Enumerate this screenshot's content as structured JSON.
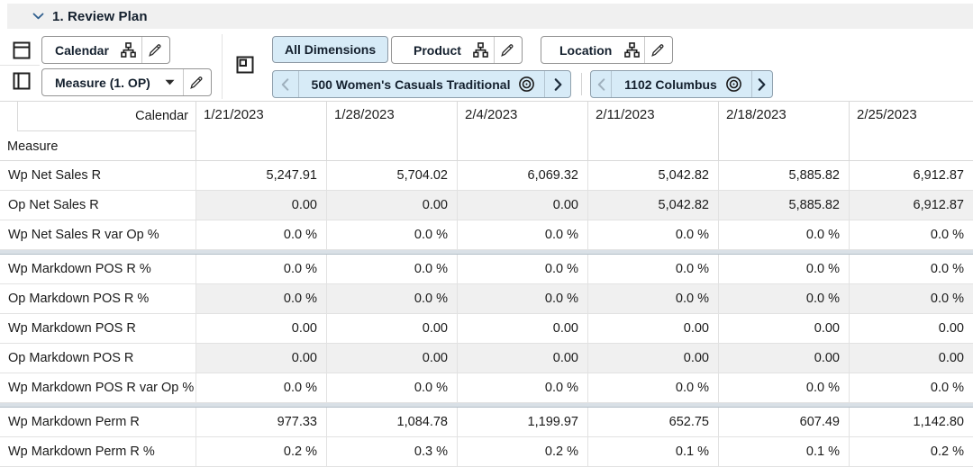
{
  "header": {
    "title": "1. Review Plan",
    "collapse_icon": "chevron-down"
  },
  "colors": {
    "title_bar_bg": "#f0f0f0",
    "selected_tile_bg": "#d7ebf7",
    "shaded_cell_bg": "#f0f0f0",
    "grid_line": "#d9d9d9",
    "group_separator": "#d9e0e6",
    "chevron_accent": "#31608f",
    "text": "#1a1a1a"
  },
  "icons": {
    "collapse": "chevron-down",
    "row_axis": "table-rows",
    "column_axis": "table-columns",
    "page_axis": "table-page",
    "hierarchy": "org-chart",
    "edit": "pencil",
    "dropdown": "caret-down",
    "prev": "chevron-left",
    "next": "chevron-right",
    "target": "bullseye"
  },
  "toolbar": {
    "row_axis": {
      "label": "Calendar"
    },
    "column_axis": {
      "label": "Measure (1. OP)"
    },
    "page_axis": {
      "all_dimensions_label": "All Dimensions",
      "product": {
        "label": "Product",
        "selected": "500 Women's Casuals Traditional"
      },
      "location": {
        "label": "Location",
        "selected": "1102 Columbus"
      }
    }
  },
  "table": {
    "corner": {
      "top_label": "Calendar",
      "bottom_label": "Measure"
    },
    "columns": [
      "1/21/2023",
      "1/28/2023",
      "2/4/2023",
      "2/11/2023",
      "2/18/2023",
      "2/25/2023"
    ],
    "groups": [
      {
        "rows": [
          {
            "label": "Wp Net Sales R",
            "shaded": false,
            "values": [
              "5,247.91",
              "5,704.02",
              "6,069.32",
              "5,042.82",
              "5,885.82",
              "6,912.87"
            ]
          },
          {
            "label": "Op Net Sales R",
            "shaded": true,
            "values": [
              "0.00",
              "0.00",
              "0.00",
              "5,042.82",
              "5,885.82",
              "6,912.87"
            ]
          },
          {
            "label": "Wp Net Sales R var Op %",
            "shaded": false,
            "values": [
              "0.0 %",
              "0.0 %",
              "0.0 %",
              "0.0 %",
              "0.0 %",
              "0.0 %"
            ]
          }
        ]
      },
      {
        "rows": [
          {
            "label": "Wp Markdown POS R %",
            "shaded": false,
            "values": [
              "0.0 %",
              "0.0 %",
              "0.0 %",
              "0.0 %",
              "0.0 %",
              "0.0 %"
            ]
          },
          {
            "label": "Op Markdown POS R %",
            "shaded": true,
            "values": [
              "0.0 %",
              "0.0 %",
              "0.0 %",
              "0.0 %",
              "0.0 %",
              "0.0 %"
            ]
          },
          {
            "label": "Wp Markdown POS R",
            "shaded": false,
            "values": [
              "0.00",
              "0.00",
              "0.00",
              "0.00",
              "0.00",
              "0.00"
            ]
          },
          {
            "label": "Op Markdown POS R",
            "shaded": true,
            "values": [
              "0.00",
              "0.00",
              "0.00",
              "0.00",
              "0.00",
              "0.00"
            ]
          },
          {
            "label": "Wp Markdown POS R var Op %",
            "shaded": false,
            "values": [
              "0.0 %",
              "0.0 %",
              "0.0 %",
              "0.0 %",
              "0.0 %",
              "0.0 %"
            ]
          }
        ]
      },
      {
        "rows": [
          {
            "label": "Wp Markdown Perm R",
            "shaded": false,
            "values": [
              "977.33",
              "1,084.78",
              "1,199.97",
              "652.75",
              "607.49",
              "1,142.80"
            ]
          },
          {
            "label": "Wp Markdown Perm R %",
            "shaded": false,
            "values": [
              "0.2 %",
              "0.3 %",
              "0.2 %",
              "0.1 %",
              "0.1 %",
              "0.2 %"
            ]
          }
        ]
      }
    ]
  }
}
